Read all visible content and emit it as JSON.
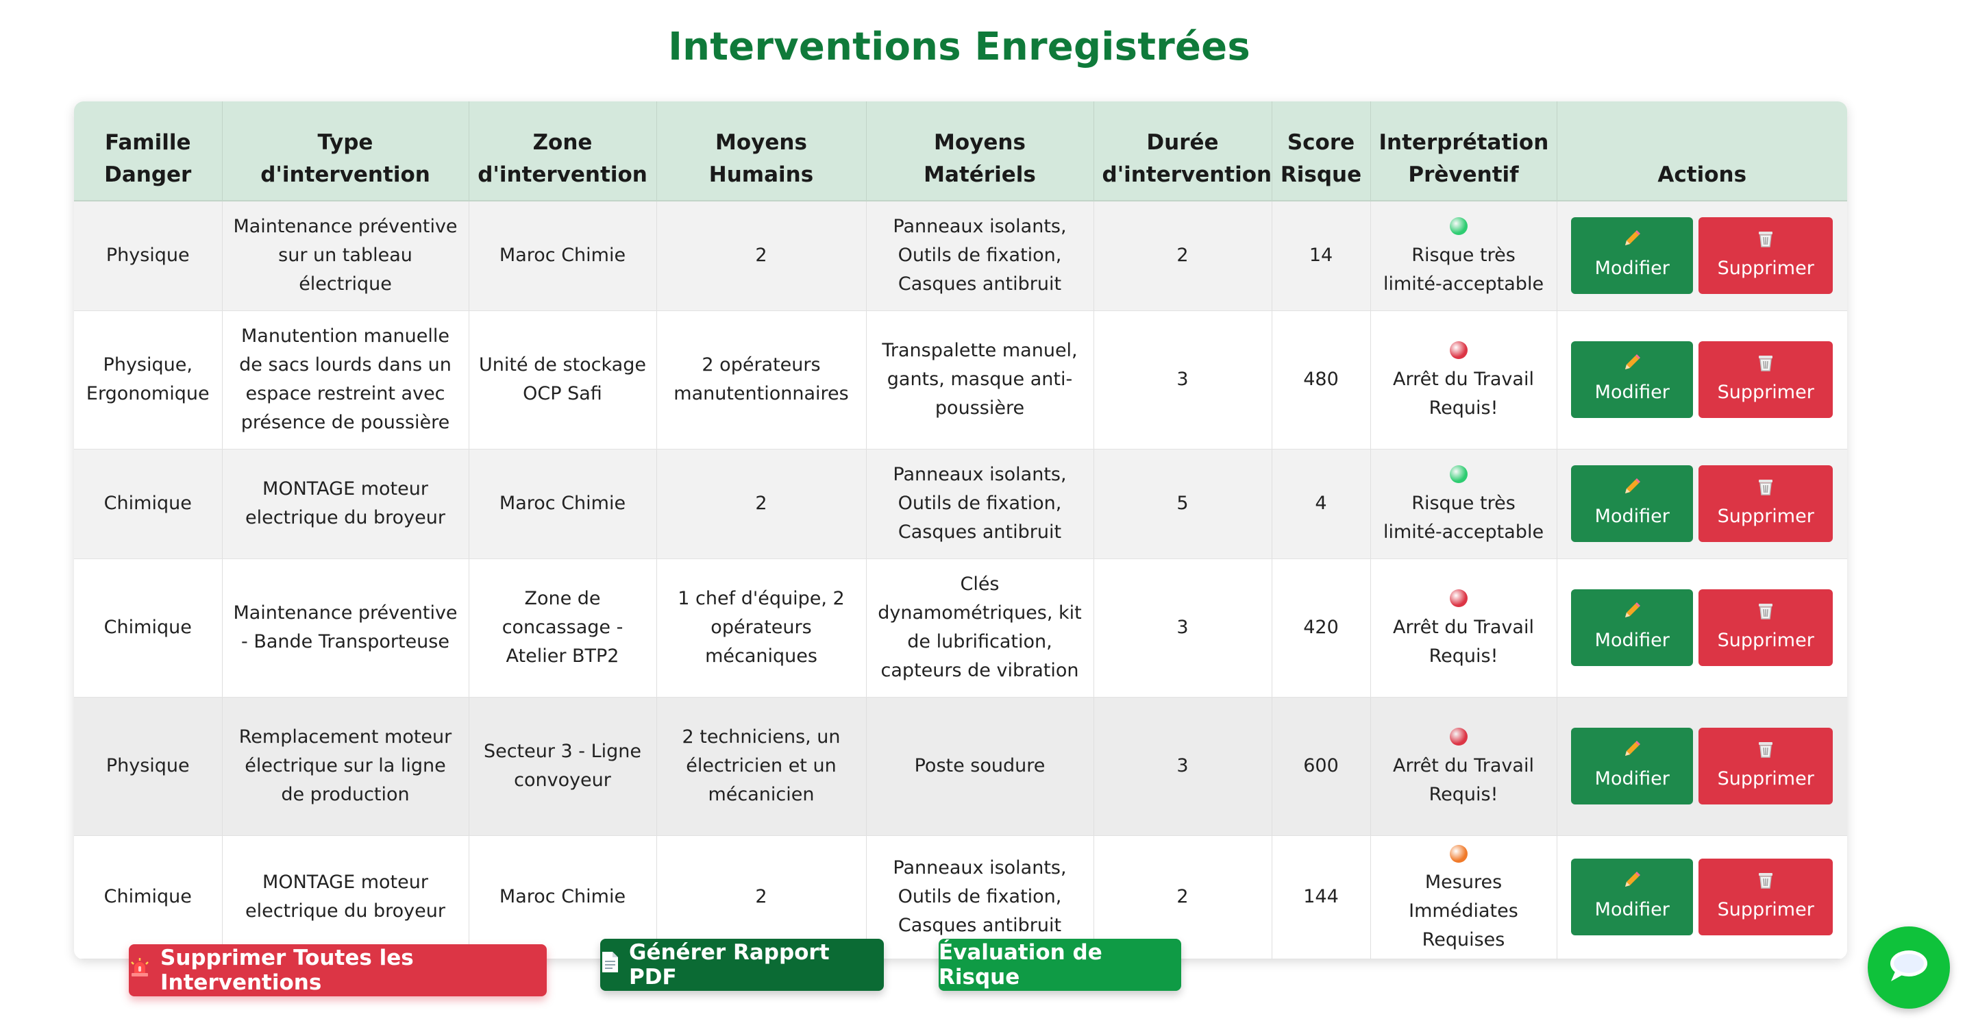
{
  "page": {
    "title": "Interventions Enregistrées"
  },
  "table": {
    "headers": [
      "Famille Danger",
      "Type d'intervention",
      "Zone d'intervention",
      "Moyens Humains",
      "Moyens Matériels",
      "Durée d'intervention",
      "Score Risque",
      "Interprétation Prèventif",
      "Actions"
    ],
    "rows": [
      {
        "famille": "Physique",
        "type": "Maintenance préventive sur un tableau électrique",
        "zone": "Maroc Chimie",
        "humains": "2",
        "materiels": "Panneaux isolants, Outils de fixation, Casques antibruit",
        "duree": "2",
        "score": "14",
        "interpretation": "Risque très limité-acceptable",
        "level_color": "#2ecc71",
        "edit_label": "Modifier",
        "delete_label": "Supprimer"
      },
      {
        "famille": "Physique, Ergonomique",
        "type": "Manutention manuelle de sacs lourds dans un espace restreint avec présence de poussière",
        "zone": "Unité de stockage OCP Safi",
        "humains": "2 opérateurs manutentionnaires",
        "materiels": "Transpalette manuel, gants, masque anti-poussière",
        "duree": "3",
        "score": "480",
        "interpretation": "Arrêt du Travail Requis!",
        "level_color": "#dc3545",
        "edit_label": "Modifier",
        "delete_label": "Supprimer"
      },
      {
        "famille": "Chimique",
        "type": "MONTAGE moteur electrique du broyeur",
        "zone": "Maroc Chimie",
        "humains": "2",
        "materiels": "Panneaux isolants, Outils de fixation, Casques antibruit",
        "duree": "5",
        "score": "4",
        "interpretation": "Risque très limité-acceptable",
        "level_color": "#2ecc71",
        "edit_label": "Modifier",
        "delete_label": "Supprimer"
      },
      {
        "famille": "Chimique",
        "type": "Maintenance préventive - Bande Transporteuse",
        "zone": "Zone de concassage - Atelier BTP2",
        "humains": "1 chef d'équipe, 2 opérateurs mécaniques",
        "materiels": "Clés dynamométriques, kit de lubrification, capteurs de vibration",
        "duree": "3",
        "score": "420",
        "interpretation": "Arrêt du Travail Requis!",
        "level_color": "#dc3545",
        "edit_label": "Modifier",
        "delete_label": "Supprimer"
      },
      {
        "famille": "Physique",
        "type": "Remplacement moteur électrique sur la ligne de production",
        "zone": "Secteur 3 - Ligne convoyeur",
        "humains": "2 techniciens, un électricien et un mécanicien",
        "materiels": "Poste soudure",
        "duree": "3",
        "score": "600",
        "interpretation": "Arrêt du Travail Requis!",
        "level_color": "#dc3545",
        "edit_label": "Modifier",
        "delete_label": "Supprimer"
      },
      {
        "famille": "Chimique",
        "type": "MONTAGE moteur electrique du broyeur",
        "zone": "Maroc Chimie",
        "humains": "2",
        "materiels": "Panneaux isolants, Outils de fixation, Casques antibruit",
        "duree": "2",
        "score": "144",
        "interpretation": "Mesures Immédiates Requises",
        "level_color": "#f07a2a",
        "edit_label": "Modifier",
        "delete_label": "Supprimer"
      }
    ]
  },
  "footer": {
    "delete_all_label": "Supprimer Toutes les Interventions",
    "delete_all_icon": "siren-icon",
    "pdf_label": "Générer Rapport PDF",
    "pdf_icon": "document-icon",
    "eval_label": "Évaluation de Risque",
    "chat_icon": "chat-bubble-icon"
  },
  "colors": {
    "title": "#0f7a3a",
    "header_bg": "#d4e8dc",
    "edit": "#1e8a4c",
    "delete": "#dc3545",
    "pdf": "#0b6b34",
    "eval": "#0f9b45",
    "chat": "#0fc23b"
  }
}
